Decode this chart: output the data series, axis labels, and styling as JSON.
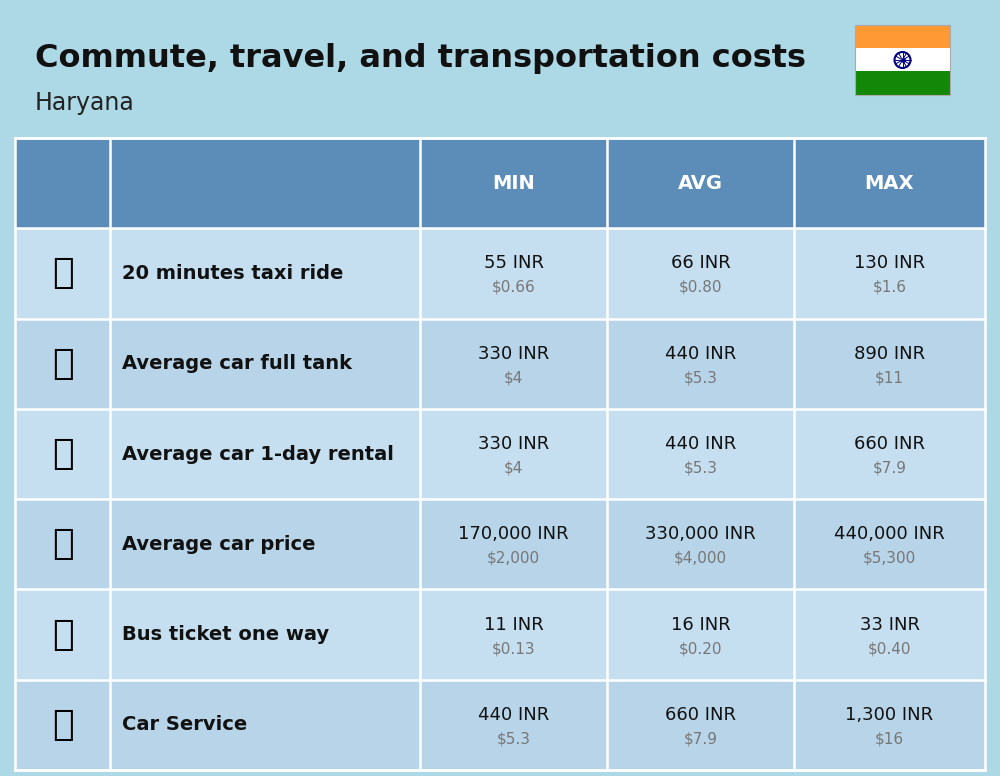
{
  "title": "Commute, travel, and transportation costs",
  "subtitle": "Haryana",
  "background_color": "#add8e6",
  "header_bg_color": "#5b8db8",
  "header_text_color": "#ffffff",
  "row_bg_colors": [
    "#c5dff0",
    "#b8d4e8"
  ],
  "col_headers": [
    "MIN",
    "AVG",
    "MAX"
  ],
  "rows": [
    {
      "label": "20 minutes taxi ride",
      "icon": "🚕",
      "min_inr": "55 INR",
      "min_usd": "$0.66",
      "avg_inr": "66 INR",
      "avg_usd": "$0.80",
      "max_inr": "130 INR",
      "max_usd": "$1.6"
    },
    {
      "label": "Average car full tank",
      "icon": "⛽",
      "min_inr": "330 INR",
      "min_usd": "$4",
      "avg_inr": "440 INR",
      "avg_usd": "$5.3",
      "max_inr": "890 INR",
      "max_usd": "$11"
    },
    {
      "label": "Average car 1-day rental",
      "icon": "🚙",
      "min_inr": "330 INR",
      "min_usd": "$4",
      "avg_inr": "440 INR",
      "avg_usd": "$5.3",
      "max_inr": "660 INR",
      "max_usd": "$7.9"
    },
    {
      "label": "Average car price",
      "icon": "🚗",
      "min_inr": "170,000 INR",
      "min_usd": "$2,000",
      "avg_inr": "330,000 INR",
      "avg_usd": "$4,000",
      "max_inr": "440,000 INR",
      "max_usd": "$5,300"
    },
    {
      "label": "Bus ticket one way",
      "icon": "🚌",
      "min_inr": "11 INR",
      "min_usd": "$0.13",
      "avg_inr": "16 INR",
      "avg_usd": "$0.20",
      "max_inr": "33 INR",
      "max_usd": "$0.40"
    },
    {
      "label": "Car Service",
      "icon": "🚗",
      "min_inr": "440 INR",
      "min_usd": "$5.3",
      "avg_inr": "660 INR",
      "avg_usd": "$7.9",
      "max_inr": "1,300 INR",
      "max_usd": "$16"
    }
  ],
  "flag_colors": [
    "#FF9933",
    "#FFFFFF",
    "#138808"
  ],
  "flag_chakra_color": "#000080",
  "title_fontsize": 23,
  "subtitle_fontsize": 17,
  "header_fontsize": 14,
  "label_fontsize": 14,
  "value_fontsize": 13,
  "usd_fontsize": 11
}
